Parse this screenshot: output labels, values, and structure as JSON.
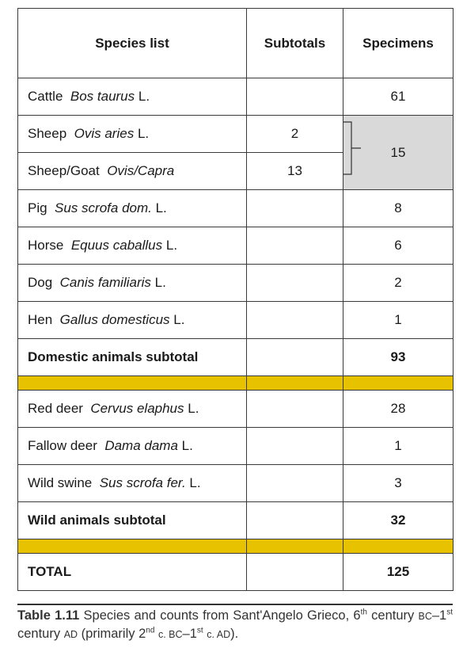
{
  "table": {
    "header": [
      "Species list",
      "Subtotals",
      "Specimens"
    ],
    "groups": [
      {
        "rows": [
          {
            "common": "Cattle",
            "latin": "Bos taurus",
            "authority": "L.",
            "specimens": 61
          },
          {
            "subrows": [
              {
                "common": "Sheep",
                "latin": "Ovis aries",
                "authority": "L.",
                "subtotal": 2
              },
              {
                "common": "Sheep/Goat",
                "latin": "Ovis/Capra",
                "subtotal": 13
              }
            ],
            "specimens": 15
          },
          {
            "common": "Pig",
            "latin": "Sus scrofa dom.",
            "authority": "L.",
            "specimens": 8
          },
          {
            "common": "Horse",
            "latin": "Equus caballus",
            "authority": "L.",
            "specimens": 6
          },
          {
            "common": "Dog",
            "latin": "Canis familiaris",
            "authority": "L.",
            "specimens": 2
          },
          {
            "common": "Hen",
            "latin": "Gallus domesticus",
            "authority": "L.",
            "specimens": 1
          }
        ],
        "subtotal": {
          "label": "Domestic animals subtotal",
          "specimens": 93
        }
      },
      {
        "rows": [
          {
            "common": "Red deer",
            "latin": "Cervus elaphus",
            "authority": "L.",
            "specimens": 28
          },
          {
            "common": "Fallow deer",
            "latin": "Dama dama",
            "authority": "L.",
            "specimens": 1
          },
          {
            "common": "Wild swine",
            "latin": "Sus scrofa fer.",
            "authority": "L.",
            "specimens": 3
          }
        ],
        "subtotal": {
          "label": "Wild animals subtotal",
          "specimens": 32
        }
      }
    ],
    "total": {
      "label": "TOTAL",
      "specimens": 125
    }
  },
  "caption": {
    "label": "Table 1.11",
    "parts": [
      "Species and counts from Sant'Angelo Grieco, 6",
      "th",
      " century ",
      "BC",
      "–1",
      "st",
      " century ",
      "AD",
      " (primarily 2",
      "nd",
      " ",
      "c. BC",
      "–1",
      "st",
      " ",
      "c. AD",
      ")."
    ]
  }
}
